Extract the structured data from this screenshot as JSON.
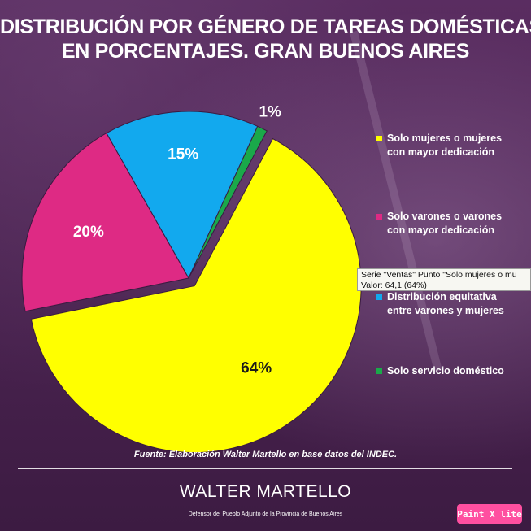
{
  "title_lines": [
    "DISTRIBUCIÓN POR GÉNERO DE TAREAS DOMÉSTICAS.",
    "EN PORCENTAJES. GRAN BUENOS AIRES"
  ],
  "chart_data": {
    "type": "pie",
    "title": "DISTRIBUCIÓN POR GÉNERO DE TAREAS DOMÉSTICAS. EN PORCENTAJES. GRAN BUENOS AIRES",
    "series_name": "Ventas",
    "slices": [
      {
        "label": "Solo mujeres o mujeres con mayor dedicación",
        "value": 64.1,
        "display": "64%",
        "color": "#ffff00",
        "exploded": true
      },
      {
        "label": "Solo varones o varones con mayor dedicación",
        "value": 20,
        "display": "20%",
        "color": "#de2a84",
        "exploded": false
      },
      {
        "label": "Distribución equitativa entre varones y mujeres",
        "value": 15,
        "display": "15%",
        "color": "#12a9ee",
        "exploded": false
      },
      {
        "label": "Solo servicio doméstico",
        "value": 1,
        "display": "1%",
        "color": "#1aa94a",
        "exploded": false
      }
    ],
    "legend_position": "right"
  },
  "legend": [
    {
      "line1": "Solo mujeres o mujeres",
      "line2": "con mayor dedicación",
      "color": "#ffff00"
    },
    {
      "line1": "Solo varones o varones",
      "line2": "con mayor dedicación",
      "color": "#de2a84"
    },
    {
      "line1": "Distribución equitativa",
      "line2": "entre varones y mujeres",
      "color": "#12a9ee"
    },
    {
      "line1": "Solo servicio doméstico",
      "line2": "",
      "color": "#1aa94a"
    }
  ],
  "tooltip": {
    "line1": "Serie \"Ventas\" Punto \"Solo mujeres o mu",
    "line2": "Valor: 64,1 (64%)"
  },
  "source": "Fuente: Elaboración Walter Martello en base datos del INDEC.",
  "brand": {
    "name": "WALTER MARTELLO",
    "subtitle": "Defensor del Pueblo Adjunto de la Provincia de Buenos Aires"
  },
  "badge": "Paint X lite"
}
